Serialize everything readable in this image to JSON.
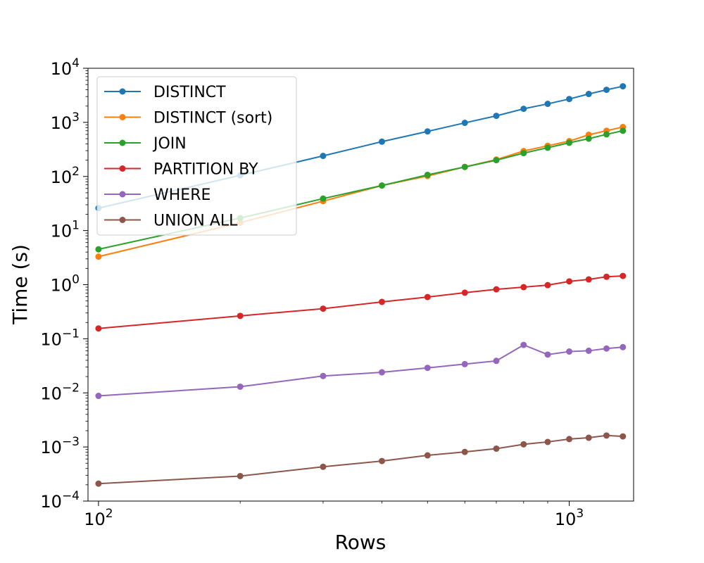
{
  "chart_data": {
    "type": "line",
    "xlabel": "Rows",
    "ylabel": "Time (s)",
    "xscale": "log",
    "yscale": "log",
    "xlim": [
      95,
      1370
    ],
    "ylim": [
      0.0001,
      10000
    ],
    "grid": false,
    "legend_position": "top-left",
    "x_ticks": [
      {
        "value": 100,
        "base": "10",
        "exp": "2"
      },
      {
        "value": 1000,
        "base": "10",
        "exp": "3"
      }
    ],
    "y_ticks": [
      {
        "value": 0.0001,
        "base": "10",
        "exp": "−4"
      },
      {
        "value": 0.001,
        "base": "10",
        "exp": "−3"
      },
      {
        "value": 0.01,
        "base": "10",
        "exp": "−2"
      },
      {
        "value": 0.1,
        "base": "10",
        "exp": "−1"
      },
      {
        "value": 1,
        "base": "10",
        "exp": "0"
      },
      {
        "value": 10,
        "base": "10",
        "exp": "1"
      },
      {
        "value": 100,
        "base": "10",
        "exp": "2"
      },
      {
        "value": 1000,
        "base": "10",
        "exp": "3"
      },
      {
        "value": 10000,
        "base": "10",
        "exp": "4"
      }
    ],
    "x": [
      100,
      200,
      300,
      400,
      500,
      600,
      700,
      800,
      900,
      1000,
      1100,
      1200,
      1300
    ],
    "series": [
      {
        "name": "DISTINCT",
        "color": "#1f77b4",
        "x": [
          100,
          200,
          300,
          400,
          500,
          600,
          700,
          800,
          900,
          1000,
          1100,
          1200,
          1300
        ],
        "values": [
          26,
          105,
          240,
          440,
          680,
          980,
          1320,
          1780,
          2200,
          2700,
          3350,
          4000,
          4650
        ]
      },
      {
        "name": "DISTINCT (sort)",
        "color": "#ff7f0e",
        "x": [
          100,
          200,
          300,
          400,
          500,
          600,
          700,
          800,
          900,
          1000,
          1100,
          1200,
          1300
        ],
        "values": [
          3.3,
          14,
          35,
          68,
          102,
          150,
          205,
          295,
          370,
          450,
          590,
          700,
          820
        ]
      },
      {
        "name": "JOIN",
        "color": "#2ca02c",
        "x": [
          100,
          200,
          300,
          400,
          500,
          600,
          700,
          800,
          900,
          1000,
          1100,
          1200,
          1300
        ],
        "values": [
          4.5,
          17,
          39,
          68,
          107,
          150,
          200,
          270,
          340,
          420,
          500,
          600,
          700
        ]
      },
      {
        "name": "PARTITION BY",
        "color": "#d62728",
        "x": [
          100,
          200,
          300,
          400,
          500,
          600,
          700,
          800,
          900,
          1000,
          1100,
          1200,
          1300
        ],
        "values": [
          0.155,
          0.265,
          0.36,
          0.48,
          0.59,
          0.71,
          0.82,
          0.9,
          0.98,
          1.15,
          1.25,
          1.4,
          1.45
        ]
      },
      {
        "name": "WHERE",
        "color": "#9467bd",
        "x": [
          100,
          200,
          300,
          400,
          500,
          600,
          700,
          800,
          900,
          1000,
          1100,
          1200,
          1300
        ],
        "values": [
          0.0088,
          0.013,
          0.0205,
          0.024,
          0.029,
          0.034,
          0.039,
          0.077,
          0.051,
          0.058,
          0.06,
          0.066,
          0.07
        ]
      },
      {
        "name": "UNION ALL",
        "color": "#8c564b",
        "x": [
          100,
          200,
          300,
          400,
          500,
          600,
          700,
          800,
          900,
          1000,
          1100,
          1200,
          1300
        ],
        "values": [
          0.00021,
          0.00029,
          0.00043,
          0.00055,
          0.0007,
          0.00081,
          0.00093,
          0.00112,
          0.00124,
          0.0014,
          0.00148,
          0.00163,
          0.00157
        ]
      }
    ]
  }
}
